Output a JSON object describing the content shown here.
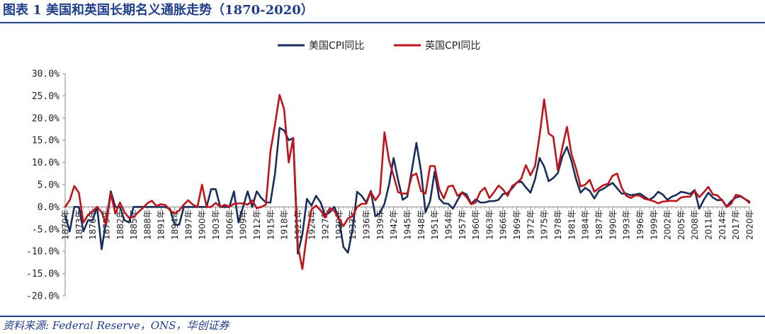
{
  "page": {
    "title": "图表 1  美国和英国长期名义通胀走势（1870-2020）",
    "source": "资料来源: Federal Reserve，ONS，华创证券"
  },
  "colors": {
    "us": "#1a2e5c",
    "uk": "#c0141c",
    "axis": "#888888",
    "heading": "#1f3e8c"
  },
  "chart_data": {
    "type": "line",
    "title": "",
    "xlabel": "",
    "ylabel": "",
    "ylim": [
      -20,
      30
    ],
    "y_tick_step": 5,
    "y_ticks": [
      "30.0%",
      "25.0%",
      "20.0%",
      "15.0%",
      "10.0%",
      "5.0%",
      "0.0%",
      "-5.0%",
      "-10.0%",
      "-15.0%",
      "-20.0%"
    ],
    "legend_position": "top-center",
    "grid": false,
    "x_start": 1870,
    "x_end": 2020,
    "x_tick_labels": [
      "1870年",
      "1873年",
      "1876年",
      "1879年",
      "1882年",
      "1885年",
      "1888年",
      "1891年",
      "1894年",
      "1897年",
      "1900年",
      "1903年",
      "1906年",
      "1909年",
      "1912年",
      "1915年",
      "1918年",
      "1921年",
      "1924年",
      "1927年",
      "1930年",
      "1933年",
      "1936年",
      "1939年",
      "1942年",
      "1945年",
      "1948年",
      "1951年",
      "1954年",
      "1957年",
      "1960年",
      "1963年",
      "1966年",
      "1969年",
      "1972年",
      "1975年",
      "1978年",
      "1981年",
      "1984年",
      "1987年",
      "1990年",
      "1993年",
      "1996年",
      "1999年",
      "2002年",
      "2005年",
      "2008年",
      "2011年",
      "2014年",
      "2017年",
      "2020年"
    ],
    "series": [
      {
        "name": "美国CPI同比",
        "color": "#1a2e5c",
        "points": [
          [
            1870,
            -2.0
          ],
          [
            1871,
            -5.5
          ],
          [
            1872,
            0.0
          ],
          [
            1873,
            0.0
          ],
          [
            1874,
            -5.5
          ],
          [
            1875,
            -3.0
          ],
          [
            1876,
            -3.0
          ],
          [
            1877,
            0.0
          ],
          [
            1878,
            -9.5
          ],
          [
            1879,
            -3.0
          ],
          [
            1880,
            3.5
          ],
          [
            1881,
            0.0
          ],
          [
            1882,
            0.0
          ],
          [
            1883,
            -3.0
          ],
          [
            1884,
            -3.5
          ],
          [
            1885,
            0.0
          ],
          [
            1886,
            0.0
          ],
          [
            1887,
            0.0
          ],
          [
            1888,
            0.0
          ],
          [
            1889,
            0.0
          ],
          [
            1890,
            0.0
          ],
          [
            1891,
            0.0
          ],
          [
            1892,
            0.0
          ],
          [
            1893,
            -0.5
          ],
          [
            1894,
            -4.0
          ],
          [
            1895,
            -4.0
          ],
          [
            1896,
            0.0
          ],
          [
            1897,
            0.0
          ],
          [
            1898,
            0.0
          ],
          [
            1899,
            0.0
          ],
          [
            1900,
            0.0
          ],
          [
            1901,
            0.0
          ],
          [
            1902,
            4.0
          ],
          [
            1903,
            4.0
          ],
          [
            1904,
            0.0
          ],
          [
            1905,
            0.0
          ],
          [
            1906,
            0.0
          ],
          [
            1907,
            3.5
          ],
          [
            1908,
            -3.5
          ],
          [
            1909,
            0.0
          ],
          [
            1910,
            3.5
          ],
          [
            1911,
            0.0
          ],
          [
            1912,
            3.5
          ],
          [
            1913,
            2.0
          ],
          [
            1914,
            1.0
          ],
          [
            1915,
            1.0
          ],
          [
            1916,
            7.5
          ],
          [
            1917,
            17.8
          ],
          [
            1918,
            17.2
          ],
          [
            1919,
            15.0
          ],
          [
            1920,
            15.5
          ],
          [
            1921,
            -10.5
          ],
          [
            1922,
            -6.2
          ],
          [
            1923,
            1.8
          ],
          [
            1924,
            0.3
          ],
          [
            1925,
            2.5
          ],
          [
            1926,
            1.0
          ],
          [
            1927,
            -1.9
          ],
          [
            1928,
            -1.2
          ],
          [
            1929,
            0.0
          ],
          [
            1930,
            -2.5
          ],
          [
            1931,
            -9.0
          ],
          [
            1932,
            -10.3
          ],
          [
            1933,
            -5.0
          ],
          [
            1934,
            3.4
          ],
          [
            1935,
            2.5
          ],
          [
            1936,
            1.0
          ],
          [
            1937,
            3.6
          ],
          [
            1938,
            -2.1
          ],
          [
            1939,
            -1.4
          ],
          [
            1940,
            0.7
          ],
          [
            1941,
            5.0
          ],
          [
            1942,
            11.0
          ],
          [
            1943,
            6.0
          ],
          [
            1944,
            1.6
          ],
          [
            1945,
            2.3
          ],
          [
            1946,
            8.3
          ],
          [
            1947,
            14.4
          ],
          [
            1948,
            8.1
          ],
          [
            1949,
            -1.2
          ],
          [
            1950,
            1.3
          ],
          [
            1951,
            7.9
          ],
          [
            1952,
            1.9
          ],
          [
            1953,
            0.8
          ],
          [
            1954,
            0.7
          ],
          [
            1955,
            -0.4
          ],
          [
            1956,
            1.5
          ],
          [
            1957,
            3.3
          ],
          [
            1958,
            2.8
          ],
          [
            1959,
            0.7
          ],
          [
            1960,
            1.7
          ],
          [
            1961,
            1.0
          ],
          [
            1962,
            1.0
          ],
          [
            1963,
            1.3
          ],
          [
            1964,
            1.3
          ],
          [
            1965,
            1.6
          ],
          [
            1966,
            2.9
          ],
          [
            1967,
            3.1
          ],
          [
            1968,
            4.2
          ],
          [
            1969,
            5.5
          ],
          [
            1970,
            5.7
          ],
          [
            1971,
            4.4
          ],
          [
            1972,
            3.2
          ],
          [
            1973,
            6.2
          ],
          [
            1974,
            11.0
          ],
          [
            1975,
            9.1
          ],
          [
            1976,
            5.8
          ],
          [
            1977,
            6.5
          ],
          [
            1978,
            7.6
          ],
          [
            1979,
            11.3
          ],
          [
            1980,
            13.5
          ],
          [
            1981,
            10.3
          ],
          [
            1982,
            6.2
          ],
          [
            1983,
            3.2
          ],
          [
            1984,
            4.3
          ],
          [
            1985,
            3.6
          ],
          [
            1986,
            1.9
          ],
          [
            1987,
            3.6
          ],
          [
            1988,
            4.1
          ],
          [
            1989,
            4.8
          ],
          [
            1990,
            5.4
          ],
          [
            1991,
            4.2
          ],
          [
            1992,
            3.0
          ],
          [
            1993,
            3.0
          ],
          [
            1994,
            2.6
          ],
          [
            1995,
            2.8
          ],
          [
            1996,
            3.0
          ],
          [
            1997,
            2.3
          ],
          [
            1998,
            1.6
          ],
          [
            1999,
            2.2
          ],
          [
            2000,
            3.4
          ],
          [
            2001,
            2.8
          ],
          [
            2002,
            1.6
          ],
          [
            2003,
            2.3
          ],
          [
            2004,
            2.7
          ],
          [
            2005,
            3.4
          ],
          [
            2006,
            3.2
          ],
          [
            2007,
            2.9
          ],
          [
            2008,
            3.8
          ],
          [
            2009,
            -0.4
          ],
          [
            2010,
            1.6
          ],
          [
            2011,
            3.2
          ],
          [
            2012,
            2.1
          ],
          [
            2013,
            1.5
          ],
          [
            2014,
            1.6
          ],
          [
            2015,
            0.1
          ],
          [
            2016,
            1.3
          ],
          [
            2017,
            2.1
          ],
          [
            2018,
            2.4
          ],
          [
            2019,
            1.8
          ],
          [
            2020,
            1.2
          ]
        ]
      },
      {
        "name": "英国CPI同比",
        "color": "#c0141c",
        "points": [
          [
            1870,
            0.0
          ],
          [
            1871,
            1.5
          ],
          [
            1872,
            4.7
          ],
          [
            1873,
            3.2
          ],
          [
            1874,
            -3.5
          ],
          [
            1875,
            -1.8
          ],
          [
            1876,
            -1.0
          ],
          [
            1877,
            0.0
          ],
          [
            1878,
            -1.2
          ],
          [
            1879,
            -4.0
          ],
          [
            1880,
            3.0
          ],
          [
            1881,
            -1.5
          ],
          [
            1882,
            1.0
          ],
          [
            1883,
            -1.2
          ],
          [
            1884,
            -2.5
          ],
          [
            1885,
            -2.3
          ],
          [
            1886,
            -1.2
          ],
          [
            1887,
            -0.3
          ],
          [
            1888,
            0.8
          ],
          [
            1889,
            1.4
          ],
          [
            1890,
            0.2
          ],
          [
            1891,
            0.6
          ],
          [
            1892,
            0.4
          ],
          [
            1893,
            -0.8
          ],
          [
            1894,
            -1.5
          ],
          [
            1895,
            -0.8
          ],
          [
            1896,
            0.5
          ],
          [
            1897,
            1.5
          ],
          [
            1898,
            0.5
          ],
          [
            1899,
            0.0
          ],
          [
            1900,
            5.0
          ],
          [
            1901,
            0.0
          ],
          [
            1902,
            0.0
          ],
          [
            1903,
            0.9
          ],
          [
            1904,
            0.0
          ],
          [
            1905,
            0.5
          ],
          [
            1906,
            0.0
          ],
          [
            1907,
            0.7
          ],
          [
            1908,
            0.8
          ],
          [
            1909,
            0.8
          ],
          [
            1910,
            0.5
          ],
          [
            1911,
            1.5
          ],
          [
            1912,
            -0.3
          ],
          [
            1913,
            0.0
          ],
          [
            1914,
            0.5
          ],
          [
            1915,
            12.5
          ],
          [
            1916,
            18.5
          ],
          [
            1917,
            25.2
          ],
          [
            1918,
            22.0
          ],
          [
            1919,
            10.0
          ],
          [
            1920,
            15.5
          ],
          [
            1921,
            -8.7
          ],
          [
            1922,
            -14.0
          ],
          [
            1923,
            -6.0
          ],
          [
            1924,
            -0.6
          ],
          [
            1925,
            0.3
          ],
          [
            1926,
            -0.8
          ],
          [
            1927,
            -2.4
          ],
          [
            1928,
            -0.3
          ],
          [
            1929,
            -0.9
          ],
          [
            1930,
            -2.8
          ],
          [
            1931,
            -4.3
          ],
          [
            1932,
            -2.6
          ],
          [
            1933,
            -2.1
          ],
          [
            1934,
            0.0
          ],
          [
            1935,
            0.7
          ],
          [
            1936,
            0.7
          ],
          [
            1937,
            3.4
          ],
          [
            1938,
            1.5
          ],
          [
            1939,
            3.0
          ],
          [
            1940,
            16.8
          ],
          [
            1941,
            10.5
          ],
          [
            1942,
            7.0
          ],
          [
            1943,
            3.3
          ],
          [
            1944,
            3.0
          ],
          [
            1945,
            3.0
          ],
          [
            1946,
            7.0
          ],
          [
            1947,
            7.5
          ],
          [
            1948,
            3.6
          ],
          [
            1949,
            3.0
          ],
          [
            1950,
            9.2
          ],
          [
            1951,
            9.2
          ],
          [
            1952,
            4.0
          ],
          [
            1953,
            1.9
          ],
          [
            1954,
            4.6
          ],
          [
            1955,
            4.8
          ],
          [
            1956,
            2.5
          ],
          [
            1957,
            3.2
          ],
          [
            1958,
            2.2
          ],
          [
            1959,
            0.6
          ],
          [
            1960,
            1.0
          ],
          [
            1961,
            3.4
          ],
          [
            1962,
            4.3
          ],
          [
            1963,
            2.0
          ],
          [
            1964,
            3.3
          ],
          [
            1965,
            4.8
          ],
          [
            1966,
            3.9
          ],
          [
            1967,
            2.5
          ],
          [
            1968,
            4.7
          ],
          [
            1969,
            5.4
          ],
          [
            1970,
            6.4
          ],
          [
            1971,
            9.4
          ],
          [
            1972,
            7.1
          ],
          [
            1973,
            9.2
          ],
          [
            1974,
            16.0
          ],
          [
            1975,
            24.2
          ],
          [
            1976,
            16.5
          ],
          [
            1977,
            15.8
          ],
          [
            1978,
            8.3
          ],
          [
            1979,
            13.4
          ],
          [
            1980,
            18.0
          ],
          [
            1981,
            11.9
          ],
          [
            1982,
            8.6
          ],
          [
            1983,
            4.6
          ],
          [
            1984,
            5.0
          ],
          [
            1985,
            6.1
          ],
          [
            1986,
            3.4
          ],
          [
            1987,
            4.2
          ],
          [
            1988,
            4.9
          ],
          [
            1989,
            5.2
          ],
          [
            1990,
            7.0
          ],
          [
            1991,
            7.5
          ],
          [
            1992,
            4.3
          ],
          [
            1993,
            2.5
          ],
          [
            1994,
            2.0
          ],
          [
            1995,
            2.6
          ],
          [
            1996,
            2.5
          ],
          [
            1997,
            1.8
          ],
          [
            1998,
            1.6
          ],
          [
            1999,
            1.3
          ],
          [
            2000,
            0.8
          ],
          [
            2001,
            1.2
          ],
          [
            2002,
            1.3
          ],
          [
            2003,
            1.4
          ],
          [
            2004,
            1.3
          ],
          [
            2005,
            2.1
          ],
          [
            2006,
            2.3
          ],
          [
            2007,
            2.3
          ],
          [
            2008,
            3.6
          ],
          [
            2009,
            2.2
          ],
          [
            2010,
            3.3
          ],
          [
            2011,
            4.5
          ],
          [
            2012,
            2.8
          ],
          [
            2013,
            2.6
          ],
          [
            2014,
            1.5
          ],
          [
            2015,
            0.0
          ],
          [
            2016,
            0.7
          ],
          [
            2017,
            2.7
          ],
          [
            2018,
            2.5
          ],
          [
            2019,
            1.8
          ],
          [
            2020,
            0.9
          ]
        ]
      }
    ]
  }
}
